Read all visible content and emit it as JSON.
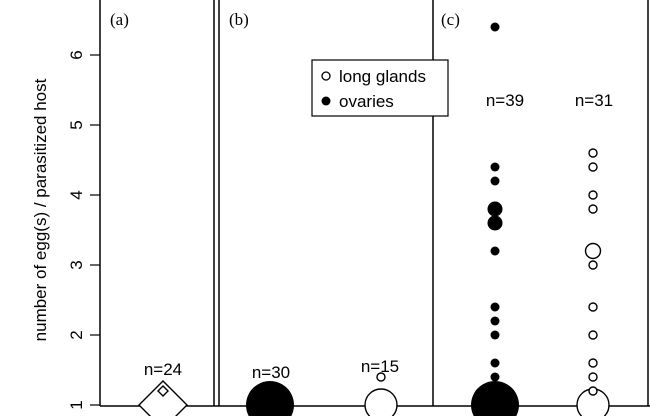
{
  "chart_data": {
    "type": "scatter",
    "ylabel": "number of egg(s) / parasitized host",
    "yticks": [
      "1",
      "2",
      "3",
      "4",
      "5",
      "6"
    ],
    "ylim": [
      1,
      6.6
    ],
    "legend": {
      "position": "top-center of panel (b)",
      "entries": [
        {
          "label": "long glands",
          "marker": "open-circle"
        },
        {
          "label": "ovaries",
          "marker": "filled-circle"
        }
      ]
    },
    "panels": [
      {
        "label": "(a)",
        "series": [
          {
            "kind": "diamond",
            "n_label": "n=24",
            "points": [
              {
                "y": 1.0,
                "size": "large"
              },
              {
                "y": 1.2,
                "size": "small"
              }
            ]
          }
        ]
      },
      {
        "label": "(b)",
        "series": [
          {
            "kind": "filled",
            "n_label": "n=30",
            "points": [
              {
                "y": 1.0,
                "size": "large"
              }
            ]
          },
          {
            "kind": "open",
            "n_label": "n=15",
            "points": [
              {
                "y": 1.0,
                "size": "large"
              },
              {
                "y": 1.4,
                "size": "small"
              }
            ]
          }
        ]
      },
      {
        "label": "(c)",
        "series": [
          {
            "kind": "filled",
            "n_label": "n=39",
            "points": [
              {
                "y": 1.0,
                "size": "large"
              },
              {
                "y": 1.4,
                "size": "small"
              },
              {
                "y": 1.6,
                "size": "small"
              },
              {
                "y": 2.0,
                "size": "small"
              },
              {
                "y": 2.2,
                "size": "small"
              },
              {
                "y": 2.4,
                "size": "small"
              },
              {
                "y": 3.2,
                "size": "small"
              },
              {
                "y": 3.6,
                "size": "medium"
              },
              {
                "y": 3.8,
                "size": "medium"
              },
              {
                "y": 4.2,
                "size": "small"
              },
              {
                "y": 4.4,
                "size": "small"
              },
              {
                "y": 6.4,
                "size": "small"
              }
            ]
          },
          {
            "kind": "open",
            "n_label": "n=31",
            "points": [
              {
                "y": 1.0,
                "size": "large"
              },
              {
                "y": 1.2,
                "size": "small"
              },
              {
                "y": 1.4,
                "size": "small"
              },
              {
                "y": 1.6,
                "size": "small"
              },
              {
                "y": 2.0,
                "size": "small"
              },
              {
                "y": 2.4,
                "size": "small"
              },
              {
                "y": 3.0,
                "size": "small"
              },
              {
                "y": 3.2,
                "size": "medium"
              },
              {
                "y": 3.8,
                "size": "small"
              },
              {
                "y": 4.0,
                "size": "small"
              },
              {
                "y": 4.4,
                "size": "small"
              },
              {
                "y": 4.6,
                "size": "small"
              }
            ]
          }
        ]
      }
    ]
  }
}
